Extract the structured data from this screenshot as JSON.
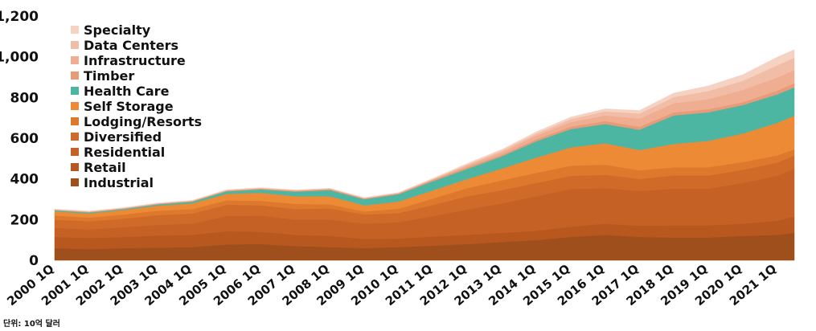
{
  "chart_data": {
    "type": "area",
    "stacked": true,
    "unit_note": "단위: 10억 달러",
    "ylim": [
      0,
      1200
    ],
    "yticks": [
      0,
      200,
      400,
      600,
      800,
      "1,000",
      "1,200"
    ],
    "grid": false,
    "legend_position": "top-left",
    "x_tick_labels": [
      "2000 1Q",
      "2001 1Q",
      "2002 1Q",
      "2003 1Q",
      "2004 1Q",
      "2005 1Q",
      "2006 1Q",
      "2007 1Q",
      "2008 1Q",
      "2009 1Q",
      "2010 1Q",
      "2011 1Q",
      "2012 1Q",
      "2013 1Q",
      "2014 1Q",
      "2015 1Q",
      "2016 1Q",
      "2017 1Q",
      "2018 1Q",
      "2019 1Q",
      "2020 1Q",
      "2021 1Q"
    ],
    "anchors": [
      "2000 1Q",
      "2001 1Q",
      "2002 1Q",
      "2003 1Q",
      "2004 1Q",
      "2005 1Q",
      "2006 1Q",
      "2007 1Q",
      "2008 1Q",
      "2009 1Q",
      "2010 1Q",
      "2011 1Q",
      "2012 1Q",
      "2013 1Q",
      "2014 1Q",
      "2015 1Q",
      "2016 1Q",
      "2017 1Q",
      "2018 1Q",
      "2019 1Q",
      "2020 1Q",
      "2021 1Q",
      "2021 3Q"
    ],
    "series": [
      {
        "name": "Industrial",
        "color": "#9E4F1C",
        "values": [
          60,
          55,
          60,
          62,
          65,
          78,
          80,
          70,
          65,
          60,
          65,
          72,
          80,
          90,
          100,
          115,
          125,
          115,
          112,
          112,
          120,
          125,
          135
        ]
      },
      {
        "name": "Retail",
        "color": "#B9581E",
        "values": [
          55,
          55,
          55,
          60,
          60,
          65,
          60,
          55,
          55,
          45,
          42,
          45,
          45,
          45,
          45,
          50,
          55,
          55,
          60,
          60,
          60,
          70,
          80
        ]
      },
      {
        "name": "Residential",
        "color": "#C56125",
        "values": [
          45,
          42,
          48,
          52,
          55,
          75,
          80,
          75,
          80,
          75,
          80,
          100,
          125,
          145,
          170,
          185,
          175,
          170,
          180,
          180,
          200,
          220,
          235
        ]
      },
      {
        "name": "Diversified",
        "color": "#CF6A28",
        "values": [
          40,
          40,
          42,
          48,
          50,
          55,
          50,
          52,
          55,
          45,
          45,
          55,
          65,
          65,
          65,
          65,
          65,
          60,
          65,
          65,
          65,
          65,
          65
        ]
      },
      {
        "name": "Lodging/Resorts",
        "color": "#DE782D",
        "values": [
          20,
          18,
          20,
          22,
          22,
          22,
          22,
          25,
          20,
          15,
          22,
          32,
          40,
          48,
          50,
          50,
          50,
          42,
          40,
          40,
          38,
          35,
          30
        ]
      },
      {
        "name": "Self Storage",
        "color": "#EC8A35",
        "values": [
          20,
          20,
          22,
          25,
          28,
          32,
          40,
          38,
          40,
          30,
          35,
          40,
          45,
          58,
          75,
          90,
          105,
          100,
          115,
          130,
          140,
          160,
          165
        ]
      },
      {
        "name": "Health Care",
        "color": "#4DB6A3",
        "values": [
          5,
          5,
          5,
          6,
          8,
          12,
          16,
          22,
          30,
          30,
          36,
          45,
          50,
          60,
          80,
          90,
          95,
          100,
          140,
          140,
          140,
          140,
          140
        ]
      },
      {
        "name": "Timber",
        "color": "#E99B78",
        "values": [
          3,
          3,
          3,
          3,
          3,
          4,
          5,
          5,
          5,
          4,
          4,
          6,
          8,
          8,
          10,
          12,
          14,
          14,
          15,
          15,
          14,
          18,
          20
        ]
      },
      {
        "name": "Infrastructure",
        "color": "#EFAD91",
        "values": [
          1,
          1,
          1,
          1,
          1,
          1,
          1,
          1,
          1,
          1,
          1,
          3,
          8,
          12,
          18,
          22,
          28,
          40,
          45,
          50,
          60,
          65,
          65
        ]
      },
      {
        "name": "Data Centers",
        "color": "#F2BDA7",
        "values": [
          1,
          1,
          1,
          1,
          1,
          1,
          1,
          1,
          1,
          1,
          1,
          2,
          5,
          8,
          10,
          15,
          20,
          25,
          30,
          40,
          45,
          60,
          60
        ]
      },
      {
        "name": "Specialty",
        "color": "#F6D2C3",
        "values": [
          2,
          2,
          2,
          2,
          2,
          2,
          2,
          2,
          2,
          2,
          2,
          3,
          5,
          6,
          8,
          10,
          12,
          15,
          20,
          25,
          30,
          40,
          40
        ]
      }
    ],
    "legend_order": [
      "Specialty",
      "Data Centers",
      "Infrastructure",
      "Timber",
      "Health Care",
      "Self Storage",
      "Lodging/Resorts",
      "Diversified",
      "Residential",
      "Retail",
      "Industrial"
    ]
  }
}
